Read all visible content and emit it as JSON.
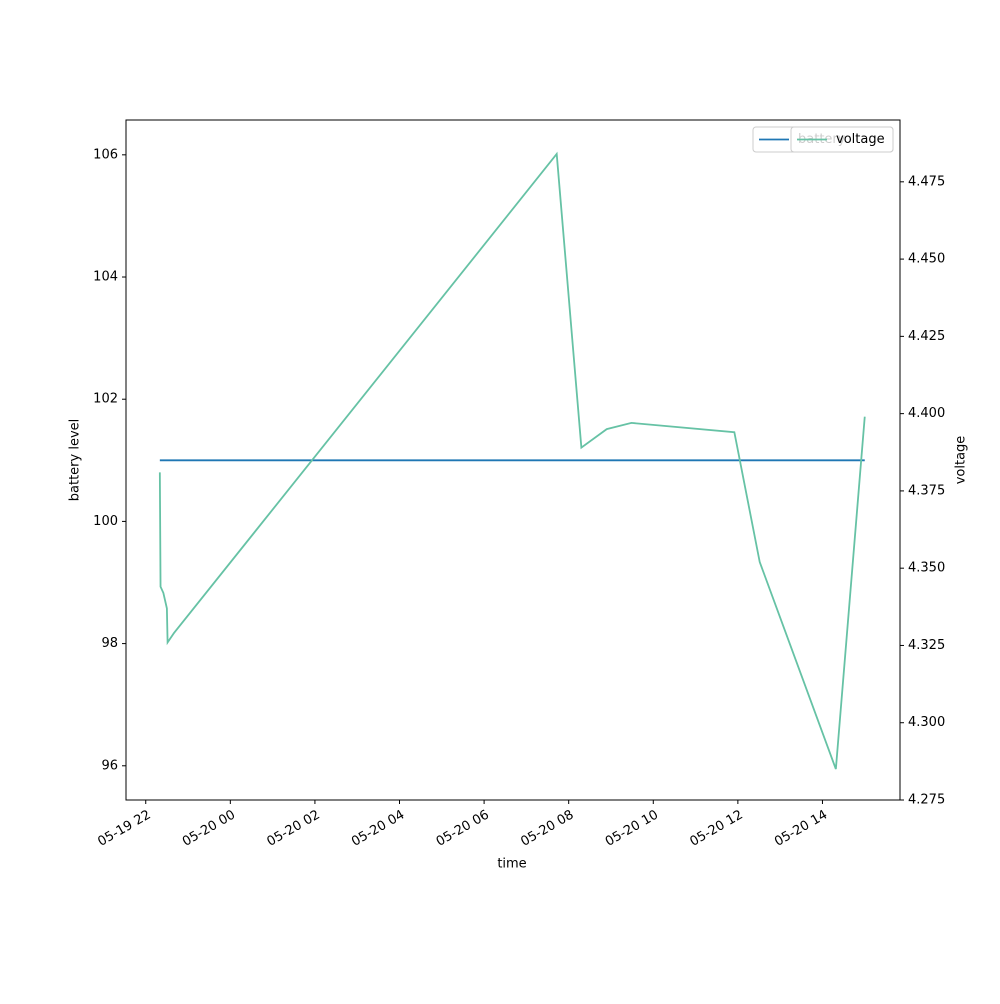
{
  "chart_data": {
    "type": "line",
    "x": [
      "05-19 22:20",
      "05-19 22:21",
      "05-19 22:25",
      "05-19 22:30",
      "05-19 22:31",
      "05-19 22:40",
      "05-20 07:43",
      "05-20 08:18",
      "05-20 08:54",
      "05-20 09:29",
      "05-20 11:55",
      "05-20 12:31",
      "05-20 14:19",
      "05-20 15:00"
    ],
    "series": [
      {
        "name": "battery",
        "color": "#1f77b4",
        "values": [
          101,
          101,
          101,
          101,
          101,
          101,
          101,
          101,
          101,
          101,
          101,
          101,
          101,
          101
        ]
      },
      {
        "name": "voltage",
        "color": "#66c2a5",
        "axis": "y2",
        "values": [
          4.381,
          4.344,
          4.342,
          4.337,
          4.326,
          4.329,
          4.484,
          4.389,
          4.395,
          4.397,
          4.394,
          4.352,
          4.285,
          4.399
        ]
      }
    ],
    "xlabel": "time",
    "ylabel": "battery level",
    "y2label": "voltage",
    "xlim": [
      "05-19 21:32",
      "05-20 15:50"
    ],
    "xticks": [
      "05-19 22",
      "05-20 00",
      "05-20 02",
      "05-20 04",
      "05-20 06",
      "05-20 08",
      "05-20 10",
      "05-20 12",
      "05-20 14"
    ],
    "ylim": [
      95.44,
      106.57
    ],
    "yticks": [
      96,
      98,
      100,
      102,
      104,
      106
    ],
    "y2lim": [
      4.275,
      4.495
    ],
    "y2ticks": [
      4.275,
      {
        "value": 4.3,
        "label": "4.300"
      },
      4.325,
      {
        "value": 4.35,
        "label": "4.350"
      },
      4.375,
      {
        "value": 4.4,
        "label": "4.400"
      },
      4.425,
      {
        "value": 4.45,
        "label": "4.450"
      },
      4.475
    ],
    "legend": "upper right"
  }
}
